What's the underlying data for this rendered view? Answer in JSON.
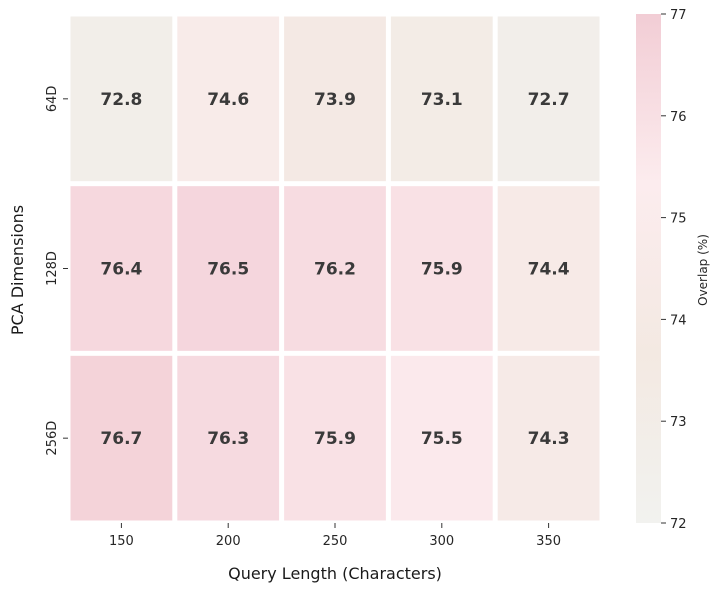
{
  "chart_data": {
    "type": "heatmap",
    "title": "",
    "xlabel": "Query Length (Characters)",
    "ylabel": "PCA Dimensions",
    "x_categories": [
      "150",
      "200",
      "250",
      "300",
      "350"
    ],
    "y_categories": [
      "64D",
      "128D",
      "256D"
    ],
    "values": [
      [
        72.8,
        74.6,
        73.9,
        73.1,
        72.7
      ],
      [
        76.4,
        76.5,
        76.2,
        75.9,
        74.4
      ],
      [
        76.7,
        76.3,
        75.9,
        75.5,
        74.3
      ]
    ],
    "value_labels": [
      [
        "72.8",
        "74.6",
        "73.9",
        "73.1",
        "72.7"
      ],
      [
        "76.4",
        "76.5",
        "76.2",
        "75.9",
        "74.4"
      ],
      [
        "76.7",
        "76.3",
        "75.9",
        "75.5",
        "74.3"
      ]
    ],
    "colorbar": {
      "label": "Overlap (%)",
      "range": [
        72,
        77
      ],
      "ticks": [
        "72",
        "73",
        "74",
        "75",
        "76",
        "77"
      ],
      "colors": [
        "#f2f2ef",
        "#f3e9e2",
        "#fcecee",
        "#f2cdd5"
      ]
    }
  }
}
